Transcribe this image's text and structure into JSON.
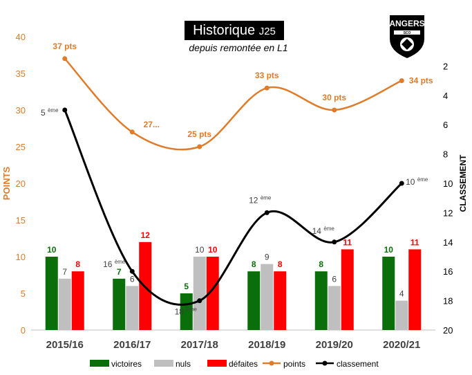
{
  "title": {
    "main": "Historique",
    "suffix": "J25"
  },
  "subtitle": "depuis remontée en L1",
  "logo_text": "ANGERS",
  "logo_subtext": "SCO",
  "colors": {
    "victoires": "#0a6e0a",
    "nuls": "#bfbfbf",
    "defaites": "#ff0000",
    "points": "#e07b2a",
    "classement": "#000000",
    "axis_left": "#e07b2a"
  },
  "chart_data": {
    "type": "bar",
    "categories": [
      "2015/16",
      "2016/17",
      "2017/18",
      "2018/19",
      "2019/20",
      "2020/21"
    ],
    "series": [
      {
        "name": "victoires",
        "type": "bar",
        "values": [
          10,
          7,
          5,
          8,
          8,
          10
        ],
        "labels": [
          "10",
          "7",
          "5",
          "8",
          "8",
          "10"
        ]
      },
      {
        "name": "nuls",
        "type": "bar",
        "values": [
          7,
          6,
          10,
          9,
          6,
          4
        ],
        "labels": [
          "7",
          "6",
          "10",
          "9",
          "6",
          "4"
        ]
      },
      {
        "name": "défaites",
        "type": "bar",
        "values": [
          8,
          12,
          10,
          8,
          11,
          11
        ],
        "labels": [
          "8",
          "12",
          "10",
          "8",
          "11",
          "11"
        ]
      },
      {
        "name": "points",
        "type": "line",
        "values": [
          37,
          27,
          25,
          33,
          30,
          34
        ],
        "labels": [
          "37 pts",
          "27...",
          "25 pts",
          "33 pts",
          "30 pts",
          "34 pts"
        ]
      },
      {
        "name": "classement",
        "type": "line",
        "axis": "right",
        "values": [
          5,
          16,
          18,
          12,
          14,
          10
        ],
        "labels": [
          "5",
          "16",
          "18",
          "12",
          "14",
          "10"
        ],
        "label_suffix": "ème"
      }
    ],
    "ylabel": "POINTS",
    "ylim": [
      0,
      40
    ],
    "yticks": [
      "0",
      "5",
      "10",
      "15",
      "20",
      "25",
      "30",
      "35",
      "40"
    ],
    "y2label": "CLASSEMENT",
    "y2lim": [
      0,
      20
    ],
    "y2_reversed": true,
    "y2ticks": [
      "2",
      "4",
      "6",
      "8",
      "10",
      "12",
      "14",
      "16",
      "18",
      "20"
    ],
    "legend_position": "bottom",
    "grid": false
  }
}
